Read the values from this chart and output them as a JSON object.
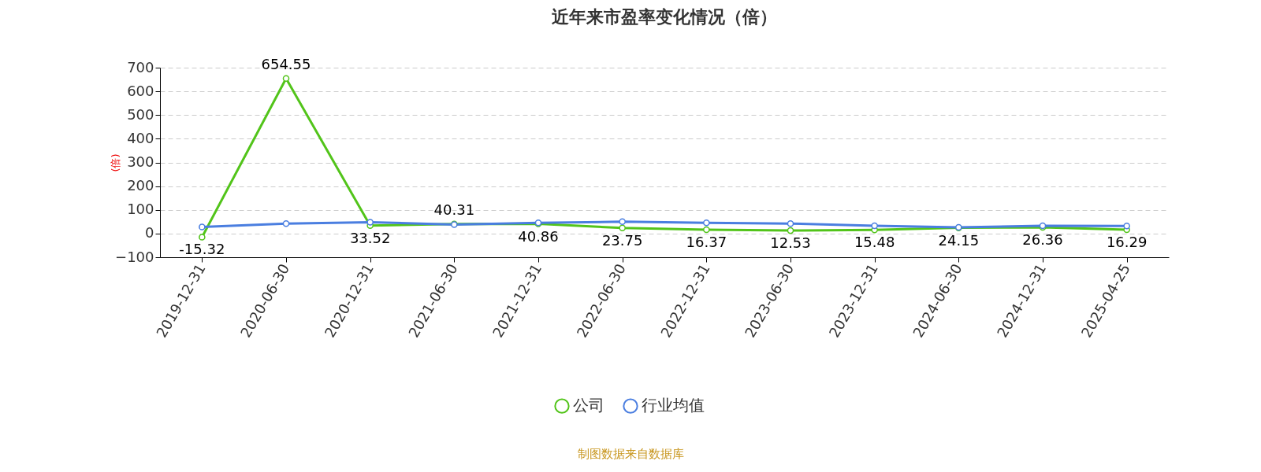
{
  "chart_data": {
    "type": "line",
    "title": "近年来市盈率变化情况（倍）",
    "ylabel": "(倍)",
    "categories": [
      "2019-12-31",
      "2020-06-30",
      "2020-12-31",
      "2021-06-30",
      "2021-12-31",
      "2022-06-30",
      "2022-12-31",
      "2023-06-30",
      "2023-12-31",
      "2024-06-30",
      "2024-12-31",
      "2025-04-25"
    ],
    "series": [
      {
        "name": "公司",
        "color": "#52c41a",
        "values": [
          -15.32,
          654.55,
          33.52,
          40.31,
          40.86,
          23.75,
          16.37,
          12.53,
          15.48,
          24.15,
          26.36,
          16.29
        ],
        "data_labels": true
      },
      {
        "name": "行业均值",
        "color": "#4a7ee0",
        "values": [
          28,
          42,
          48,
          38,
          45,
          50,
          45,
          42,
          33,
          26,
          33,
          32
        ]
      }
    ],
    "ylim": [
      -100,
      700
    ],
    "yticks": [
      -100,
      0,
      100,
      200,
      300,
      400,
      500,
      600,
      700
    ],
    "grid": "y",
    "legend": "bottom",
    "marker": "circle",
    "line_style": "solid",
    "annotations": [
      "制图数据来自数据库"
    ]
  }
}
